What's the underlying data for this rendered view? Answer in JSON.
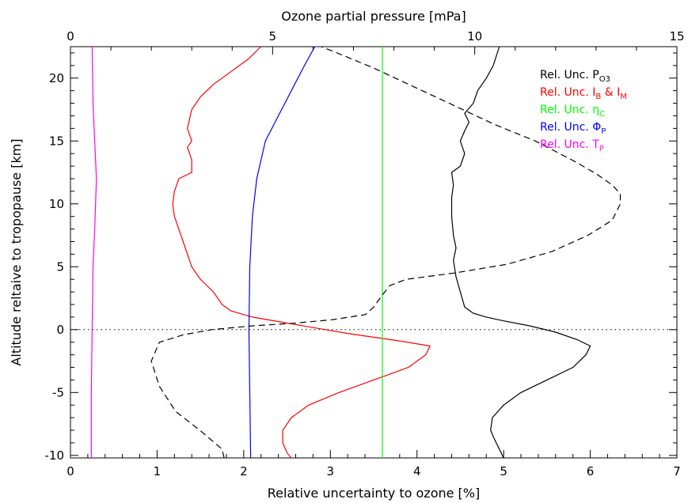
{
  "chart_data": {
    "type": "line",
    "xlabel_bottom": "Relative uncertainty to ozone [%]",
    "xlabel_top": "Ozone partial pressure [mPa]",
    "ylabel": "Altitude reltaive to tropopause [km]",
    "xlim_bottom": [
      0,
      7
    ],
    "xlim_top": [
      0,
      15
    ],
    "ylim": [
      -10.2,
      22.5
    ],
    "xticks_bottom": [
      "0",
      "1",
      "2",
      "3",
      "4",
      "5",
      "6",
      "7"
    ],
    "xticks_top": [
      "0",
      "5",
      "10",
      "15"
    ],
    "yticks": [
      "-10",
      "-5",
      "0",
      "5",
      "10",
      "15",
      "20"
    ],
    "tropopause_line": {
      "y": 0,
      "style": "dotted"
    },
    "series": [
      {
        "key": "p_o3",
        "color": "#000000",
        "style": "solid",
        "axis": "bottom",
        "points": [
          [
            5.0,
            -10.2
          ],
          [
            4.95,
            -9.5
          ],
          [
            4.88,
            -8.5
          ],
          [
            4.85,
            -8
          ],
          [
            4.87,
            -7
          ],
          [
            5.0,
            -6
          ],
          [
            5.2,
            -5
          ],
          [
            5.5,
            -4
          ],
          [
            5.8,
            -3
          ],
          [
            5.95,
            -2
          ],
          [
            6.0,
            -1.3
          ],
          [
            5.85,
            -0.8
          ],
          [
            5.6,
            -0.2
          ],
          [
            5.3,
            0.3
          ],
          [
            5.0,
            0.7
          ],
          [
            4.8,
            1.0
          ],
          [
            4.65,
            1.3
          ],
          [
            4.55,
            1.8
          ],
          [
            4.5,
            3
          ],
          [
            4.45,
            4.2
          ],
          [
            4.42,
            5.5
          ],
          [
            4.45,
            6.5
          ],
          [
            4.42,
            7.5
          ],
          [
            4.4,
            9
          ],
          [
            4.4,
            10.5
          ],
          [
            4.42,
            11.5
          ],
          [
            4.4,
            12.5
          ],
          [
            4.5,
            13
          ],
          [
            4.55,
            14
          ],
          [
            4.5,
            15
          ],
          [
            4.55,
            15.8
          ],
          [
            4.6,
            16.5
          ],
          [
            4.55,
            17.2
          ],
          [
            4.65,
            18
          ],
          [
            4.7,
            19
          ],
          [
            4.8,
            20
          ],
          [
            4.88,
            21
          ],
          [
            4.95,
            22.5
          ]
        ]
      },
      {
        "key": "i_b_i_m",
        "color": "#ff0000",
        "style": "solid",
        "axis": "bottom",
        "points": [
          [
            2.55,
            -10.2
          ],
          [
            2.5,
            -9.8
          ],
          [
            2.45,
            -9
          ],
          [
            2.45,
            -8
          ],
          [
            2.55,
            -7
          ],
          [
            2.75,
            -6
          ],
          [
            3.1,
            -5
          ],
          [
            3.5,
            -4
          ],
          [
            3.9,
            -3
          ],
          [
            4.1,
            -2
          ],
          [
            4.15,
            -1.3
          ],
          [
            3.8,
            -0.9
          ],
          [
            3.2,
            -0.3
          ],
          [
            2.6,
            0.4
          ],
          [
            2.1,
            1.0
          ],
          [
            1.85,
            1.5
          ],
          [
            1.75,
            2
          ],
          [
            1.65,
            3
          ],
          [
            1.5,
            4
          ],
          [
            1.4,
            5
          ],
          [
            1.35,
            6
          ],
          [
            1.3,
            7
          ],
          [
            1.25,
            8
          ],
          [
            1.2,
            9
          ],
          [
            1.18,
            10
          ],
          [
            1.2,
            11
          ],
          [
            1.25,
            12
          ],
          [
            1.4,
            12.5
          ],
          [
            1.4,
            13.5
          ],
          [
            1.35,
            14.5
          ],
          [
            1.4,
            15
          ],
          [
            1.35,
            16
          ],
          [
            1.4,
            17.5
          ],
          [
            1.5,
            18.5
          ],
          [
            1.65,
            19.5
          ],
          [
            1.85,
            20.5
          ],
          [
            2.05,
            21.5
          ],
          [
            2.2,
            22.5
          ]
        ]
      },
      {
        "key": "eta_c",
        "color": "#00ff00",
        "style": "solid",
        "axis": "bottom",
        "points": [
          [
            3.6,
            -10.2
          ],
          [
            3.6,
            22.5
          ]
        ]
      },
      {
        "key": "phi_p",
        "color": "#0000ff",
        "style": "solid",
        "axis": "bottom",
        "points": [
          [
            2.08,
            -10.2
          ],
          [
            2.07,
            -5
          ],
          [
            2.06,
            0
          ],
          [
            2.07,
            5
          ],
          [
            2.1,
            9
          ],
          [
            2.15,
            12
          ],
          [
            2.25,
            15
          ],
          [
            2.4,
            17
          ],
          [
            2.55,
            19
          ],
          [
            2.7,
            21
          ],
          [
            2.82,
            22.5
          ]
        ]
      },
      {
        "key": "t_p",
        "color": "#ff00ff",
        "style": "solid",
        "axis": "bottom",
        "points": [
          [
            0.24,
            -10.2
          ],
          [
            0.24,
            -5
          ],
          [
            0.25,
            0
          ],
          [
            0.26,
            5
          ],
          [
            0.28,
            8
          ],
          [
            0.3,
            12
          ],
          [
            0.28,
            15
          ],
          [
            0.26,
            18
          ],
          [
            0.25,
            22.5
          ]
        ]
      },
      {
        "key": "ozone",
        "color": "#000000",
        "style": "dashed",
        "axis": "top",
        "points": [
          [
            3.8,
            -10.2
          ],
          [
            3.75,
            -9.5
          ],
          [
            3.2,
            -8
          ],
          [
            2.6,
            -6.5
          ],
          [
            2.2,
            -4.5
          ],
          [
            2.0,
            -2.5
          ],
          [
            2.2,
            -1
          ],
          [
            2.8,
            -0.4
          ],
          [
            3.5,
            0.0
          ],
          [
            4.5,
            0.3
          ],
          [
            5.5,
            0.5
          ],
          [
            6.5,
            0.8
          ],
          [
            7.3,
            1.2
          ],
          [
            7.5,
            1.8
          ],
          [
            7.7,
            2.7
          ],
          [
            7.9,
            3.5
          ],
          [
            8.3,
            4.0
          ],
          [
            9.5,
            4.5
          ],
          [
            10.8,
            5.2
          ],
          [
            11.9,
            6.2
          ],
          [
            12.8,
            7.5
          ],
          [
            13.4,
            8.7
          ],
          [
            13.6,
            10
          ],
          [
            13.6,
            10.8
          ],
          [
            13.4,
            11.5
          ],
          [
            13.0,
            12.4
          ],
          [
            12.4,
            13.5
          ],
          [
            11.5,
            15
          ],
          [
            10.5,
            16.3
          ],
          [
            9.5,
            17.8
          ],
          [
            8.5,
            19.3
          ],
          [
            7.5,
            20.8
          ],
          [
            6.6,
            22
          ],
          [
            6.2,
            22.5
          ]
        ]
      }
    ],
    "legend": {
      "placement": "top-right",
      "entries": [
        {
          "key": "p_o3",
          "prefix": "Rel. Unc. ",
          "main": "P",
          "sub": "O3",
          "rest": "",
          "sub2": "",
          "color": "#000000"
        },
        {
          "key": "i_b_i_m",
          "prefix": "Rel. Unc. ",
          "main": "I",
          "sub": "B",
          "rest": " & I",
          "sub2": "M",
          "color": "#ff0000"
        },
        {
          "key": "eta_c",
          "prefix": "Rel. Unc. ",
          "main": "η",
          "sub": "C",
          "rest": "",
          "sub2": "",
          "color": "#00ff00"
        },
        {
          "key": "phi_p",
          "prefix": "Rel. Unc. ",
          "main": "Φ",
          "sub": "P",
          "rest": "",
          "sub2": "",
          "color": "#0000ff"
        },
        {
          "key": "t_p",
          "prefix": "Rel. Unc. ",
          "main": "T",
          "sub": "P",
          "rest": "",
          "sub2": "",
          "color": "#ff00ff"
        }
      ]
    }
  }
}
